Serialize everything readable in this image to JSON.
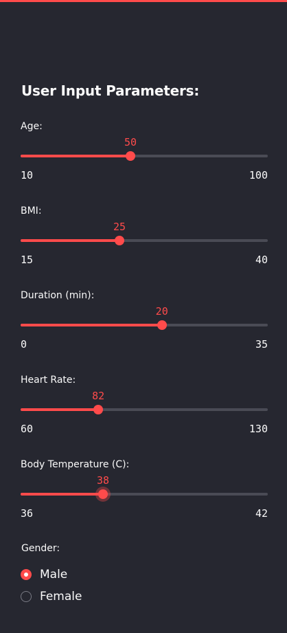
{
  "colors": {
    "accent": "#ff4b4b",
    "background": "#262730",
    "track": "#4a4b55",
    "text": "#fafafa"
  },
  "header": {
    "title": "User Input Parameters:"
  },
  "sliders": [
    {
      "label": "Age:",
      "min": 10,
      "max": 100,
      "value": 50
    },
    {
      "label": "BMI:",
      "min": 15,
      "max": 40,
      "value": 25
    },
    {
      "label": "Duration (min):",
      "min": 0,
      "max": 35,
      "value": 20
    },
    {
      "label": "Heart Rate:",
      "min": 60,
      "max": 130,
      "value": 82
    },
    {
      "label": "Body Temperature (C):",
      "min": 36,
      "max": 42,
      "value": 38
    }
  ],
  "gender": {
    "label": "Gender:",
    "options": [
      "Male",
      "Female"
    ],
    "selected": "Male"
  }
}
